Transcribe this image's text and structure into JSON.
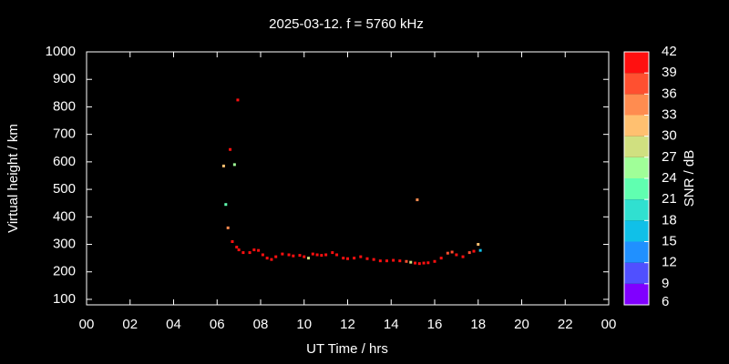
{
  "chart_data": {
    "type": "scatter",
    "title": "2025-03-12. f = 5760 kHz",
    "xlabel": "UT Time / hrs",
    "ylabel": "Virtual height / km",
    "colorbar_label": "SNR / dB",
    "xlim": [
      0,
      24
    ],
    "xticks": [
      {
        "value": 0,
        "label": "00"
      },
      {
        "value": 2,
        "label": "02"
      },
      {
        "value": 4,
        "label": "04"
      },
      {
        "value": 6,
        "label": "06"
      },
      {
        "value": 8,
        "label": "08"
      },
      10,
      12,
      14,
      16,
      18,
      20,
      22,
      {
        "value": 24,
        "label": "00"
      }
    ],
    "ylim": [
      80,
      1000
    ],
    "yticks": [
      100,
      200,
      300,
      400,
      500,
      600,
      700,
      800,
      900,
      1000
    ],
    "clim": [
      6,
      42
    ],
    "cticks": [
      6,
      9,
      12,
      15,
      18,
      21,
      24,
      27,
      30,
      33,
      36,
      39,
      42
    ],
    "colors": [
      "#8000ff",
      "#5050ff",
      "#2090ff",
      "#10c0e8",
      "#30e0d0",
      "#60ffb0",
      "#a0ff98",
      "#d0e080",
      "#ffc070",
      "#ff8c50",
      "#ff5030",
      "#ff1010"
    ],
    "x": [
      6.3,
      6.4,
      6.5,
      6.6,
      6.7,
      6.8,
      6.95,
      6.9,
      7.0,
      7.2,
      7.5,
      7.7,
      7.9,
      8.1,
      8.3,
      8.5,
      8.7,
      9.0,
      9.3,
      9.5,
      9.8,
      10.0,
      10.2,
      10.4,
      10.6,
      10.8,
      11.0,
      11.3,
      11.5,
      11.8,
      12.0,
      12.3,
      12.6,
      12.9,
      13.2,
      13.5,
      13.8,
      14.1,
      14.4,
      14.7,
      14.9,
      15.1,
      15.2,
      15.3,
      15.5,
      15.7,
      16.0,
      16.3,
      16.6,
      16.8,
      17.0,
      17.3,
      17.6,
      17.8,
      18.0,
      18.1
    ],
    "values": [
      585,
      445,
      360,
      645,
      310,
      590,
      825,
      290,
      280,
      270,
      270,
      280,
      278,
      262,
      250,
      245,
      255,
      265,
      262,
      258,
      260,
      255,
      250,
      265,
      262,
      260,
      262,
      270,
      262,
      250,
      248,
      250,
      255,
      248,
      245,
      240,
      240,
      242,
      240,
      238,
      235,
      232,
      462,
      230,
      232,
      233,
      238,
      250,
      268,
      272,
      262,
      255,
      270,
      275,
      300,
      278
    ],
    "snr": [
      32,
      22,
      34,
      40,
      39,
      26,
      39,
      40,
      40,
      40,
      40,
      40,
      40,
      40,
      40,
      41,
      40,
      40,
      40,
      40,
      40,
      40,
      27,
      40,
      40,
      40,
      40,
      39,
      40,
      40,
      40,
      40,
      40,
      40,
      40,
      40,
      40,
      40,
      40,
      38,
      27,
      40,
      35,
      40,
      40,
      40,
      40,
      40,
      38,
      37,
      40,
      40,
      38,
      40,
      30,
      15
    ]
  }
}
